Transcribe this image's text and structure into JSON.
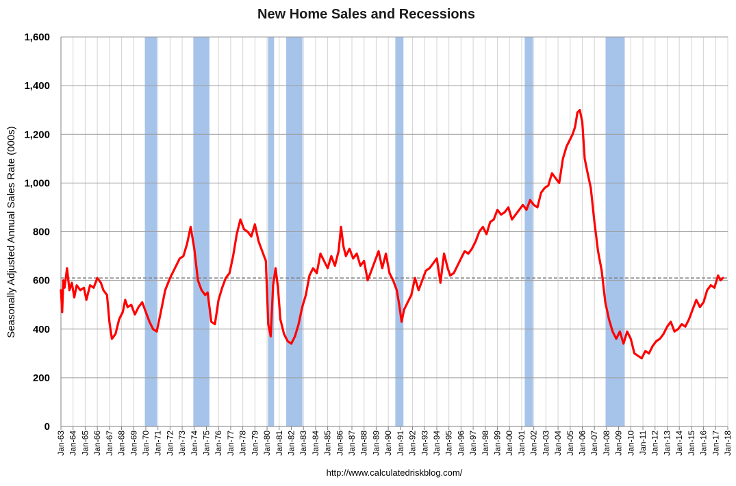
{
  "chart_data": {
    "type": "line",
    "title": "New Home Sales and Recessions",
    "ylabel": "Seasonally Adjusted Annual Sales Rate (000s)",
    "xlabel": "",
    "source": "http://www.calculatedriskblog.com/",
    "ylim": [
      0,
      1600
    ],
    "yticks": [
      0,
      200,
      400,
      600,
      800,
      1000,
      1200,
      1400,
      1600
    ],
    "ytick_labels": [
      "0",
      "200",
      "400",
      "600",
      "800",
      "1,000",
      "1,200",
      "1,400",
      "1,600"
    ],
    "xlim": [
      1963.0,
      2018.0
    ],
    "xtick_labels": [
      "Jan-63",
      "Jan-64",
      "Jan-65",
      "Jan-66",
      "Jan-67",
      "Jan-68",
      "Jan-69",
      "Jan-70",
      "Jan-71",
      "Jan-72",
      "Jan-73",
      "Jan-74",
      "Jan-75",
      "Jan-76",
      "Jan-77",
      "Jan-78",
      "Jan-79",
      "Jan-80",
      "Jan-81",
      "Jan-82",
      "Jan-83",
      "Jan-84",
      "Jan-85",
      "Jan-86",
      "Jan-87",
      "Jan-88",
      "Jan-89",
      "Jan-90",
      "Jan-91",
      "Jan-92",
      "Jan-93",
      "Jan-94",
      "Jan-95",
      "Jan-96",
      "Jan-97",
      "Jan-98",
      "Jan-99",
      "Jan-00",
      "Jan-01",
      "Jan-02",
      "Jan-03",
      "Jan-04",
      "Jan-05",
      "Jan-06",
      "Jan-07",
      "Jan-08",
      "Jan-09",
      "Jan-10",
      "Jan-11",
      "Jan-12",
      "Jan-13",
      "Jan-14",
      "Jan-15",
      "Jan-16",
      "Jan-17",
      "Jan-18"
    ],
    "grid": true,
    "reference_line": {
      "value": 610,
      "style": "dashed",
      "color": "#808080"
    },
    "recessions": [
      {
        "start": 1969.92,
        "end": 1970.92
      },
      {
        "start": 1973.92,
        "end": 1975.25
      },
      {
        "start": 1980.08,
        "end": 1980.58
      },
      {
        "start": 1981.58,
        "end": 1982.92
      },
      {
        "start": 1990.58,
        "end": 1991.25
      },
      {
        "start": 2001.25,
        "end": 2001.92
      },
      {
        "start": 2007.92,
        "end": 2009.5
      }
    ],
    "recession_color": "#a6c3ea",
    "series": [
      {
        "color": "#ff0000",
        "x": [
          1963.0,
          1963.1,
          1963.2,
          1963.3,
          1963.5,
          1963.7,
          1963.9,
          1964.1,
          1964.3,
          1964.6,
          1964.9,
          1965.1,
          1965.4,
          1965.7,
          1966.0,
          1966.3,
          1966.5,
          1966.8,
          1967.0,
          1967.2,
          1967.5,
          1967.8,
          1968.1,
          1968.3,
          1968.5,
          1968.8,
          1969.1,
          1969.4,
          1969.7,
          1970.0,
          1970.3,
          1970.6,
          1970.9,
          1971.2,
          1971.6,
          1972.0,
          1972.4,
          1972.8,
          1973.1,
          1973.4,
          1973.7,
          1974.0,
          1974.3,
          1974.6,
          1974.9,
          1975.1,
          1975.4,
          1975.7,
          1976.0,
          1976.3,
          1976.6,
          1976.9,
          1977.2,
          1977.5,
          1977.8,
          1978.1,
          1978.4,
          1978.7,
          1979.0,
          1979.3,
          1979.6,
          1979.9,
          1980.1,
          1980.3,
          1980.5,
          1980.7,
          1980.9,
          1981.1,
          1981.4,
          1981.7,
          1982.0,
          1982.3,
          1982.6,
          1982.9,
          1983.2,
          1983.5,
          1983.8,
          1984.1,
          1984.4,
          1984.7,
          1985.0,
          1985.3,
          1985.6,
          1985.9,
          1986.1,
          1986.3,
          1986.5,
          1986.8,
          1987.1,
          1987.4,
          1987.7,
          1988.0,
          1988.3,
          1988.6,
          1988.9,
          1989.2,
          1989.5,
          1989.8,
          1990.1,
          1990.4,
          1990.7,
          1990.9,
          1991.1,
          1991.3,
          1991.6,
          1991.9,
          1992.2,
          1992.5,
          1992.8,
          1993.1,
          1993.4,
          1993.7,
          1994.0,
          1994.3,
          1994.6,
          1994.9,
          1995.1,
          1995.4,
          1995.7,
          1996.0,
          1996.3,
          1996.6,
          1996.9,
          1997.2,
          1997.5,
          1997.8,
          1998.1,
          1998.4,
          1998.7,
          1999.0,
          1999.3,
          1999.6,
          1999.9,
          2000.2,
          2000.5,
          2000.8,
          2001.1,
          2001.4,
          2001.7,
          2002.0,
          2002.3,
          2002.6,
          2002.9,
          2003.2,
          2003.5,
          2003.8,
          2004.1,
          2004.4,
          2004.7,
          2005.0,
          2005.2,
          2005.4,
          2005.6,
          2005.8,
          2006.0,
          2006.2,
          2006.4,
          2006.7,
          2007.0,
          2007.3,
          2007.6,
          2007.9,
          2008.2,
          2008.5,
          2008.8,
          2009.1,
          2009.4,
          2009.7,
          2010.0,
          2010.3,
          2010.6,
          2010.9,
          2011.2,
          2011.5,
          2011.8,
          2012.1,
          2012.4,
          2012.7,
          2013.0,
          2013.3,
          2013.6,
          2013.9,
          2014.2,
          2014.5,
          2014.8,
          2015.1,
          2015.4,
          2015.7,
          2016.0,
          2016.3,
          2016.6,
          2016.9,
          2017.2,
          2017.4,
          2017.6
        ],
        "values": [
          560,
          470,
          600,
          570,
          650,
          560,
          590,
          530,
          580,
          560,
          570,
          520,
          580,
          570,
          610,
          590,
          560,
          540,
          430,
          360,
          380,
          440,
          470,
          520,
          490,
          500,
          460,
          490,
          510,
          470,
          430,
          400,
          390,
          460,
          560,
          610,
          650,
          690,
          700,
          750,
          820,
          730,
          600,
          560,
          540,
          550,
          430,
          420,
          520,
          570,
          610,
          630,
          700,
          790,
          850,
          810,
          800,
          780,
          830,
          760,
          720,
          680,
          420,
          370,
          580,
          650,
          570,
          440,
          380,
          350,
          340,
          370,
          420,
          490,
          540,
          620,
          650,
          630,
          710,
          680,
          650,
          700,
          660,
          720,
          820,
          740,
          700,
          730,
          690,
          710,
          660,
          680,
          600,
          640,
          680,
          720,
          650,
          710,
          630,
          600,
          560,
          500,
          430,
          480,
          510,
          540,
          610,
          560,
          600,
          640,
          650,
          670,
          690,
          590,
          710,
          650,
          620,
          630,
          660,
          690,
          720,
          710,
          730,
          760,
          800,
          820,
          790,
          840,
          850,
          890,
          870,
          880,
          900,
          850,
          870,
          890,
          910,
          890,
          930,
          910,
          900,
          960,
          980,
          990,
          1040,
          1020,
          1000,
          1100,
          1150,
          1180,
          1200,
          1230,
          1290,
          1300,
          1250,
          1100,
          1050,
          980,
          840,
          720,
          640,
          510,
          440,
          390,
          360,
          390,
          340,
          390,
          360,
          300,
          290,
          280,
          310,
          300,
          330,
          350,
          360,
          380,
          410,
          430,
          390,
          400,
          420,
          410,
          440,
          480,
          520,
          490,
          510,
          560,
          580,
          570,
          620,
          600,
          610
        ]
      }
    ]
  }
}
